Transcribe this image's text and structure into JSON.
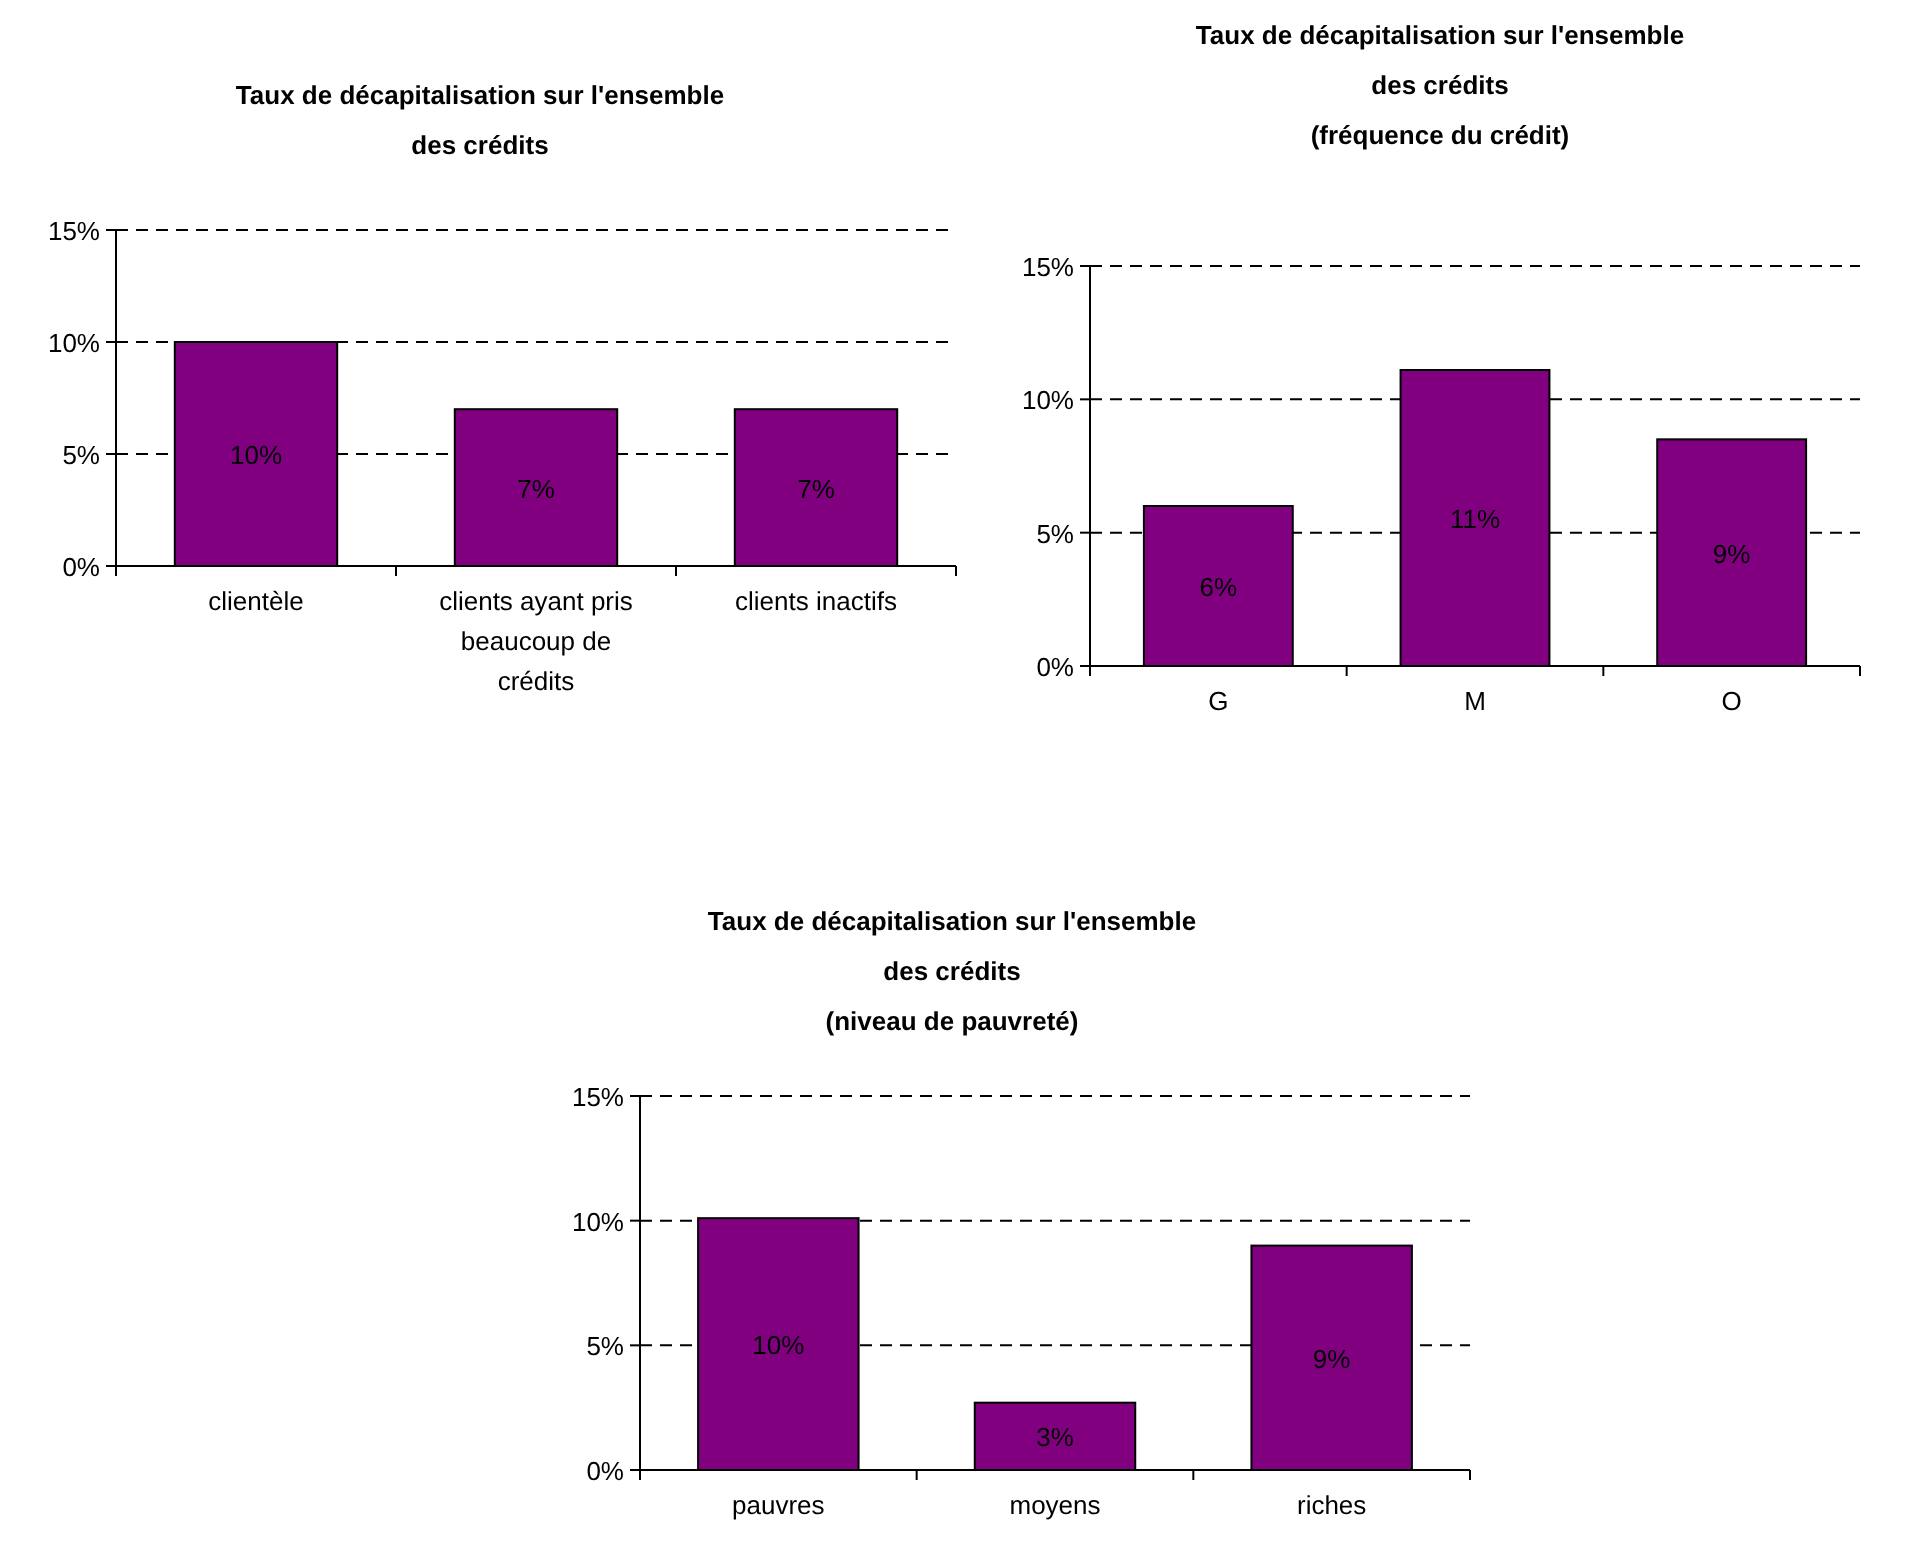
{
  "chart_data": [
    {
      "type": "bar",
      "title": "Taux de décapitalisation sur l'ensemble des crédits",
      "categories": [
        "clientèle",
        "clients ayant pris beaucoup de crédits",
        "clients inactifs"
      ],
      "values": [
        10,
        7,
        7
      ],
      "color": "#800080",
      "ylim": [
        0,
        15
      ],
      "yticks": [
        {
          "value": 0,
          "label": "0%"
        },
        {
          "value": 5,
          "label": "5%"
        },
        {
          "value": 10,
          "label": "10%"
        },
        {
          "value": 15,
          "label": "15%"
        }
      ],
      "grid": "y",
      "line_style": "dashed",
      "value_labels": [
        "10%",
        "7%",
        "7%"
      ]
    },
    {
      "type": "bar",
      "title": "Taux de décapitalisation sur l'ensemble des crédits",
      "subtitle": "(fréquence du crédit)",
      "categories": [
        "G",
        "M",
        "O"
      ],
      "values": [
        6,
        11.1,
        8.5
      ],
      "color": "#800080",
      "ylim": [
        0,
        15
      ],
      "yticks": [
        {
          "value": 0,
          "label": "0%"
        },
        {
          "value": 5,
          "label": "5%"
        },
        {
          "value": 10,
          "label": "10%"
        },
        {
          "value": 15,
          "label": "15%"
        }
      ],
      "grid": "y",
      "line_style": "dashed",
      "value_labels": [
        "6%",
        "11%",
        "9%"
      ]
    },
    {
      "type": "bar",
      "title": "Taux de décapitalisation sur l'ensemble des crédits",
      "subtitle": "(niveau de pauvreté)",
      "categories": [
        "pauvres",
        "moyens",
        "riches"
      ],
      "values": [
        10.1,
        2.7,
        9
      ],
      "color": "#800080",
      "ylim": [
        0,
        15
      ],
      "yticks": [
        {
          "value": 0,
          "label": "0%"
        },
        {
          "value": 5,
          "label": "5%"
        },
        {
          "value": 10,
          "label": "10%"
        },
        {
          "value": 15,
          "label": "15%"
        }
      ],
      "grid": "y",
      "line_style": "dashed",
      "value_labels": [
        "10%",
        "3%",
        "9%"
      ]
    }
  ]
}
